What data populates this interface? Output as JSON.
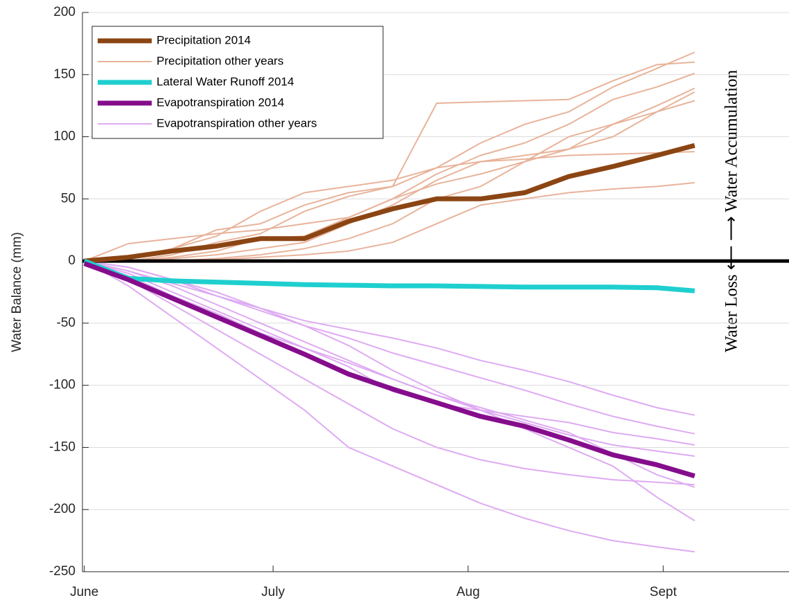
{
  "chart_data": {
    "type": "line",
    "y_label": "Water Balance (mm)",
    "annotation": "Water Loss ⟵ ⟶ Water Accumulation",
    "x": [
      0,
      7,
      14,
      21,
      28,
      35,
      42,
      49,
      56,
      63,
      70,
      77,
      84,
      91,
      97
    ],
    "xlim": [
      -0.3,
      112
    ],
    "xticks": [
      {
        "value": 0,
        "label": "June"
      },
      {
        "value": 30,
        "label": "July"
      },
      {
        "value": 61,
        "label": "Aug"
      },
      {
        "value": 92,
        "label": "Sept"
      }
    ],
    "ylim": [
      -250,
      200
    ],
    "yticks": [
      -250,
      -200,
      -150,
      -100,
      -50,
      0,
      50,
      100,
      150,
      200
    ],
    "grid": true,
    "hline": 0,
    "legend": "upper left",
    "series": [
      {
        "name": "Precipitation 2014",
        "color": "#8b4513",
        "values": [
          0,
          3,
          8,
          12,
          18,
          18,
          32,
          42,
          50,
          50,
          55,
          68,
          76,
          85,
          93
        ]
      },
      {
        "name": "Precipitation other years",
        "color": "#e8b39a",
        "lines": [
          {
            "values": [
              0,
              2,
              10,
              25,
              30,
              45,
              55,
              60,
              75,
              95,
              110,
              120,
              140,
              155,
              168
            ]
          },
          {
            "values": [
              0,
              0,
              5,
              15,
              22,
              40,
              52,
              60,
              127,
              128,
              129,
              130,
              145,
              158,
              160
            ]
          },
          {
            "values": [
              0,
              14,
              18,
              22,
              25,
              30,
              35,
              50,
              70,
              85,
              95,
              110,
              130,
              140,
              151
            ]
          },
          {
            "values": [
              0,
              0,
              3,
              8,
              18,
              20,
              35,
              50,
              62,
              70,
              80,
              90,
              110,
              125,
              139
            ]
          },
          {
            "values": [
              0,
              0,
              2,
              5,
              10,
              15,
              30,
              45,
              65,
              80,
              85,
              90,
              100,
              120,
              136
            ]
          },
          {
            "values": [
              0,
              0,
              0,
              2,
              5,
              10,
              18,
              30,
              50,
              60,
              80,
              100,
              110,
              120,
              129
            ]
          },
          {
            "values": [
              0,
              3,
              10,
              20,
              40,
              55,
              60,
              65,
              75,
              80,
              82,
              85,
              86,
              87,
              88
            ]
          },
          {
            "values": [
              0,
              0,
              0,
              1,
              3,
              5,
              8,
              15,
              30,
              45,
              50,
              55,
              58,
              60,
              63
            ]
          }
        ]
      },
      {
        "name": "Lateral Water Runoff 2014",
        "color": "#1fcfcf",
        "values": [
          0,
          -14,
          -16,
          -17,
          -18,
          -19,
          -19.5,
          -20,
          -20,
          -20.5,
          -21,
          -21,
          -21,
          -21.5,
          -24
        ]
      },
      {
        "name": "Evapotranspiration 2014",
        "color": "#850d8c",
        "values": [
          -2,
          -15,
          -30,
          -45,
          -60,
          -75,
          -91,
          -103,
          -114,
          -125,
          -133,
          -144,
          -156,
          -164,
          -173
        ]
      },
      {
        "name": "Evapotranspiration other years",
        "color": "#deaaf2",
        "lines": [
          {
            "values": [
              0,
              -8,
              -18,
              -28,
              -38,
              -48,
              -55,
              -62,
              -70,
              -80,
              -88,
              -97,
              -108,
              -118,
              -124
            ]
          },
          {
            "values": [
              0,
              -5,
              -15,
              -28,
              -40,
              -52,
              -62,
              -74,
              -84,
              -94,
              -104,
              -115,
              -125,
              -133,
              -139
            ]
          },
          {
            "values": [
              0,
              -10,
              -25,
              -40,
              -55,
              -70,
              -85,
              -105,
              -115,
              -120,
              -125,
              -130,
              -138,
              -143,
              -148
            ]
          },
          {
            "values": [
              0,
              -12,
              -28,
              -42,
              -58,
              -70,
              -82,
              -95,
              -108,
              -120,
              -130,
              -140,
              -148,
              -153,
              -157
            ]
          },
          {
            "values": [
              0,
              -15,
              -35,
              -55,
              -75,
              -95,
              -115,
              -135,
              -150,
              -160,
              -167,
              -172,
              -176,
              -178,
              -180
            ]
          },
          {
            "values": [
              0,
              -8,
              -20,
              -35,
              -50,
              -65,
              -80,
              -95,
              -108,
              -118,
              -128,
              -138,
              -155,
              -172,
              -182
            ]
          },
          {
            "values": [
              0,
              -5,
              -15,
              -25,
              -38,
              -52,
              -68,
              -88,
              -105,
              -120,
              -135,
              -150,
              -165,
              -190,
              -209
            ]
          },
          {
            "values": [
              0,
              -20,
              -45,
              -70,
              -95,
              -120,
              -150,
              -165,
              -180,
              -195,
              -207,
              -217,
              -225,
              -230,
              -234
            ]
          }
        ]
      }
    ]
  }
}
